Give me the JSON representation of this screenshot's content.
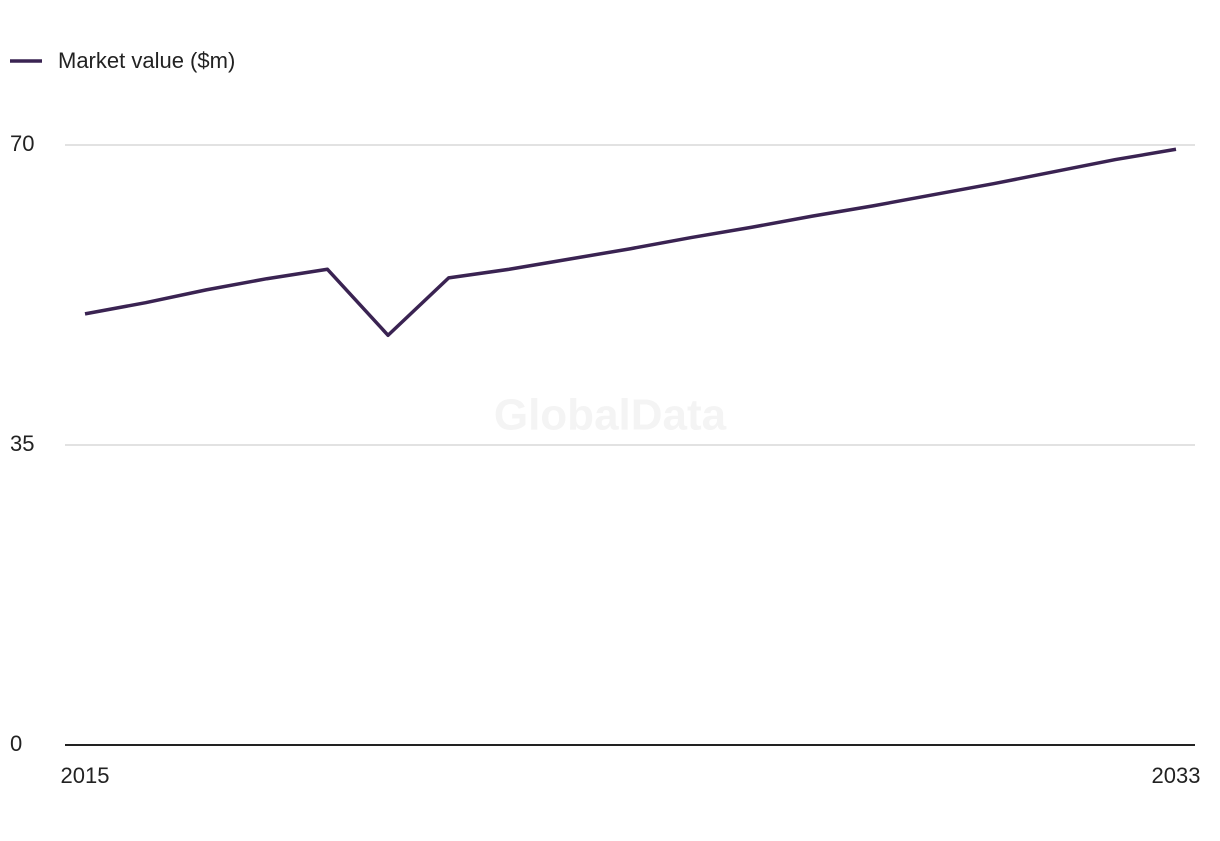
{
  "chart_data": {
    "type": "line",
    "watermark": "GlobalData",
    "x": [
      2015,
      2016,
      2017,
      2018,
      2019,
      2020,
      2021,
      2022,
      2023,
      2024,
      2025,
      2026,
      2027,
      2028,
      2029,
      2030,
      2031,
      2032,
      2033
    ],
    "series": [
      {
        "name": "Market value ($m)",
        "color": "#3a2352",
        "values": [
          50.3,
          51.6,
          53.1,
          54.4,
          55.5,
          47.8,
          54.5,
          55.5,
          56.7,
          57.9,
          59.2,
          60.4,
          61.7,
          62.9,
          64.2,
          65.5,
          66.9,
          68.3,
          69.5
        ]
      }
    ],
    "xlim": [
      2015,
      2033
    ],
    "xticks": [
      2015,
      2033
    ],
    "ylim": [
      0,
      70
    ],
    "yticks": [
      0,
      35,
      70
    ],
    "grid": true,
    "legend": "top-left"
  }
}
